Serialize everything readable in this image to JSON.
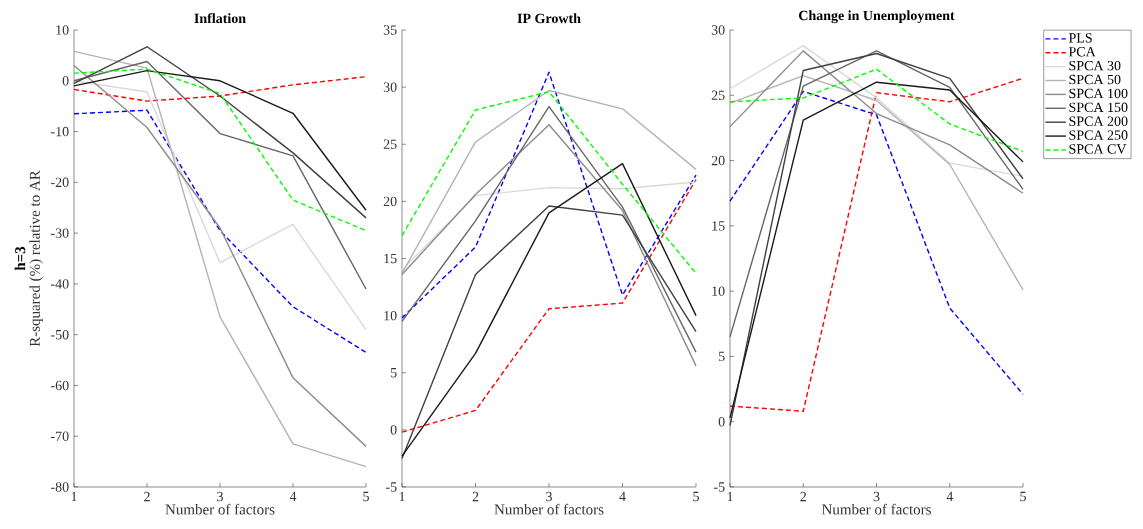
{
  "chart_data": [
    {
      "type": "line",
      "title": "Inflation",
      "xlabel": "Number of factors",
      "ylabel": "R-squared (%) relative to AR",
      "annotations": [
        "h=3"
      ],
      "x": [
        1,
        2,
        3,
        4,
        5
      ],
      "xlim": [
        1,
        5
      ],
      "xticks": [
        1,
        2,
        3,
        4,
        5
      ],
      "ylim": [
        -80,
        10
      ],
      "yticks": [
        -80,
        -70,
        -60,
        -50,
        -40,
        -30,
        -20,
        -10,
        0,
        10
      ],
      "series": [
        {
          "color": "#0000ff",
          "line_style": "dashed",
          "values": [
            -6.5,
            -5.8,
            -29.5,
            -44.5,
            -53.5
          ]
        },
        {
          "color": "#ff0000",
          "line_style": "dashed",
          "values": [
            -1.7,
            -4,
            -3,
            -0.8,
            0.8
          ]
        },
        {
          "color": "#d9d9d9",
          "line_style": "solid",
          "values": [
            0,
            -2.2,
            -35.8,
            -28.3,
            -49
          ]
        },
        {
          "color": "#b3b3b3",
          "line_style": "solid",
          "values": [
            5.8,
            2.5,
            -46.5,
            -71.5,
            -76
          ]
        },
        {
          "color": "#8c8c8c",
          "line_style": "solid",
          "values": [
            3,
            -9.2,
            -29,
            -58.5,
            -72
          ]
        },
        {
          "color": "#666666",
          "line_style": "solid",
          "values": [
            0,
            3.8,
            -10.4,
            -14.8,
            -41
          ]
        },
        {
          "color": "#404040",
          "line_style": "solid",
          "values": [
            -0.5,
            6.7,
            -3,
            -14.2,
            -27
          ]
        },
        {
          "color": "#1a1a1a",
          "line_style": "solid",
          "values": [
            -1,
            2,
            0,
            -6.4,
            -25.5
          ]
        },
        {
          "color": "#00ff00",
          "line_style": "dashed",
          "values": [
            1.5,
            2.3,
            -2.5,
            -23.5,
            -29.5
          ]
        }
      ]
    },
    {
      "type": "line",
      "title": "IP Growth",
      "xlabel": "Number of factors",
      "x": [
        1,
        2,
        3,
        4,
        5
      ],
      "xlim": [
        1,
        5
      ],
      "xticks": [
        1,
        2,
        3,
        4,
        5
      ],
      "ylim": [
        -5,
        35
      ],
      "yticks": [
        -5,
        0,
        5,
        10,
        15,
        20,
        25,
        30,
        35
      ],
      "series": [
        {
          "color": "#0000ff",
          "line_style": "dashed",
          "values": [
            9.8,
            16,
            31.3,
            11.8,
            22.3
          ]
        },
        {
          "color": "#ff0000",
          "line_style": "dashed",
          "values": [
            -0.2,
            1.7,
            10.6,
            11.1,
            21.9
          ]
        },
        {
          "color": "#d9d9d9",
          "line_style": "solid",
          "values": [
            14,
            20.5,
            21.2,
            21.1,
            21.7
          ]
        },
        {
          "color": "#b3b3b3",
          "line_style": "solid",
          "values": [
            13.7,
            25.2,
            29.7,
            28.1,
            22.8
          ]
        },
        {
          "color": "#8c8c8c",
          "line_style": "solid",
          "values": [
            13.6,
            20.6,
            26.7,
            19.2,
            5.6
          ]
        },
        {
          "color": "#666666",
          "line_style": "solid",
          "values": [
            9.5,
            18.3,
            28.3,
            19.5,
            6.8
          ]
        },
        {
          "color": "#404040",
          "line_style": "solid",
          "values": [
            -2.5,
            13.6,
            19.6,
            18.8,
            8.6
          ]
        },
        {
          "color": "#1a1a1a",
          "line_style": "solid",
          "values": [
            -2.3,
            6.7,
            19,
            23.3,
            10
          ]
        },
        {
          "color": "#00ff00",
          "line_style": "dashed",
          "values": [
            17,
            28,
            29.6,
            21.5,
            13.7
          ]
        }
      ]
    },
    {
      "type": "line",
      "title": "Change in Unemployment",
      "xlabel": "Number of factors",
      "x": [
        1,
        2,
        3,
        4,
        5
      ],
      "xlim": [
        1,
        5
      ],
      "xticks": [
        1,
        2,
        3,
        4,
        5
      ],
      "ylim": [
        -5,
        30
      ],
      "yticks": [
        -5,
        0,
        5,
        10,
        15,
        20,
        25,
        30
      ],
      "legend": "right",
      "series": [
        {
          "name": "PLS",
          "color": "#0000ff",
          "line_style": "dashed",
          "values": [
            16.9,
            25.3,
            23.5,
            8.7,
            2.1
          ]
        },
        {
          "name": "PCA",
          "color": "#ff0000",
          "line_style": "dashed",
          "values": [
            1.2,
            0.8,
            25.2,
            24.5,
            26.3
          ]
        },
        {
          "name": "SPCA 30",
          "color": "#d9d9d9",
          "line_style": "solid",
          "values": [
            25.5,
            28.8,
            24.8,
            19.8,
            18.8
          ]
        },
        {
          "name": "SPCA 50",
          "color": "#b3b3b3",
          "line_style": "solid",
          "values": [
            24.4,
            26.5,
            24.6,
            19.7,
            10.1
          ]
        },
        {
          "name": "SPCA 100",
          "color": "#8c8c8c",
          "line_style": "solid",
          "values": [
            22.6,
            28.4,
            23.6,
            21.2,
            17.5
          ]
        },
        {
          "name": "SPCA 150",
          "color": "#666666",
          "line_style": "solid",
          "values": [
            6.5,
            25.7,
            28.4,
            25.6,
            17.8
          ]
        },
        {
          "name": "SPCA 200",
          "color": "#404040",
          "line_style": "solid",
          "values": [
            -0.3,
            26.9,
            28.2,
            26.3,
            18.6
          ]
        },
        {
          "name": "SPCA 250",
          "color": "#1a1a1a",
          "line_style": "solid",
          "values": [
            0.3,
            23.1,
            26,
            25.4,
            19.9
          ]
        },
        {
          "name": "SPCA CV",
          "color": "#00ff00",
          "line_style": "dashed",
          "values": [
            24.5,
            24.8,
            27,
            22.8,
            20.7
          ]
        }
      ]
    }
  ]
}
